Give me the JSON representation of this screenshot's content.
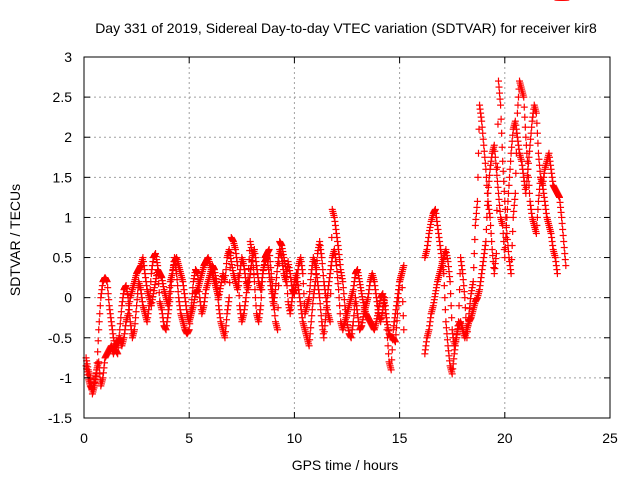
{
  "chart_data": {
    "type": "scatter",
    "title": "Day 331 of 2019, Sidereal Day-to-day VTEC variation (SDTVAR) for receiver kir8",
    "xlabel": "GPS time / hours",
    "ylabel": "SDTVAR / TECUs",
    "xlim": [
      0,
      25
    ],
    "ylim": [
      -1.5,
      3
    ],
    "xticks": [
      0,
      5,
      10,
      15,
      20,
      25
    ],
    "xtick_labels": [
      "0",
      "5",
      "10",
      "15",
      "20",
      "25"
    ],
    "yticks": [
      -1.5,
      -1,
      -0.5,
      0,
      0.5,
      1,
      1.5,
      2,
      2.5,
      3
    ],
    "ytick_labels": [
      "-1.5",
      "-1",
      "-0.5",
      "0",
      "0.5",
      "1",
      "1.5",
      "2",
      "2.5",
      "3"
    ],
    "grid": true,
    "marker": "plus",
    "color": "#ff0000",
    "series": [
      {
        "name": "SDTVAR",
        "x": [
          0.1,
          0.2,
          0.3,
          0.4,
          0.5,
          0.6,
          0.7,
          0.8,
          0.9,
          1.0,
          1.1,
          1.2,
          1.3,
          1.4,
          1.5,
          1.6,
          1.7,
          1.8,
          1.9,
          2.0,
          2.1,
          2.2,
          2.3,
          2.4,
          2.5,
          2.6,
          2.7,
          2.8,
          2.9,
          3.0,
          3.1,
          3.2,
          3.3,
          3.4,
          3.5,
          3.6,
          3.7,
          3.8,
          3.9,
          4.0,
          4.1,
          4.2,
          4.3,
          4.4,
          4.5,
          4.6,
          4.7,
          4.8,
          4.9,
          5.0,
          5.1,
          5.2,
          5.3,
          5.4,
          5.5,
          5.6,
          5.7,
          5.8,
          5.9,
          6.0,
          6.1,
          6.2,
          6.3,
          6.4,
          6.5,
          6.6,
          6.7,
          6.8,
          6.9,
          7.0,
          7.1,
          7.2,
          7.3,
          7.4,
          7.5,
          7.6,
          7.7,
          7.8,
          7.9,
          8.0,
          8.1,
          8.2,
          8.3,
          8.4,
          8.5,
          8.6,
          8.7,
          8.8,
          8.9,
          9.0,
          9.1,
          9.2,
          9.3,
          9.4,
          9.5,
          9.6,
          9.7,
          9.8,
          9.9,
          10.0,
          10.1,
          10.2,
          10.3,
          10.4,
          10.5,
          10.6,
          10.7,
          10.8,
          10.9,
          11.0,
          11.1,
          11.2,
          11.3,
          11.4,
          11.5,
          11.6,
          11.7,
          11.8,
          11.9,
          12.0,
          12.1,
          12.2,
          12.3,
          12.4,
          12.5,
          12.6,
          12.7,
          12.8,
          12.9,
          13.0,
          13.1,
          13.2,
          13.3,
          13.4,
          13.5,
          13.6,
          13.7,
          13.8,
          13.9,
          14.0,
          14.1,
          14.2,
          14.3,
          14.4,
          14.5,
          14.6,
          14.7,
          14.8,
          14.9,
          15.0,
          15.1,
          15.2,
          16.2,
          16.3,
          16.4,
          16.5,
          16.6,
          16.7,
          16.8,
          16.9,
          17.0,
          17.1,
          17.2,
          17.3,
          17.4,
          17.5,
          17.6,
          17.7,
          17.8,
          17.9,
          18.0,
          18.1,
          18.2,
          18.3,
          18.4,
          18.5,
          18.6,
          18.7,
          18.8,
          18.9,
          19.0,
          19.1,
          19.2,
          19.3,
          19.4,
          19.5,
          19.6,
          19.7,
          19.8,
          19.9,
          20.0,
          20.1,
          20.2,
          20.3,
          20.4,
          20.5,
          20.6,
          20.7,
          20.8,
          20.9,
          21.0,
          21.1,
          21.2,
          21.3,
          21.4,
          21.5,
          21.6,
          21.7,
          21.8,
          21.9,
          22.0,
          22.1,
          22.2,
          22.3,
          22.4,
          22.5,
          22.6,
          22.7,
          22.8,
          22.9
        ],
        "y": [
          -0.85,
          -1.0,
          -1.1,
          -1.15,
          -1.05,
          -0.9,
          -0.8,
          -1.1,
          -1.0,
          -0.75,
          -0.7,
          -0.65,
          -0.6,
          -0.7,
          -0.6,
          -0.55,
          -0.5,
          -0.6,
          -0.5,
          -0.3,
          -0.2,
          0.0,
          0.1,
          0.2,
          0.3,
          0.35,
          0.4,
          0.5,
          0.3,
          0.1,
          0.0,
          -0.1,
          0.05,
          0.2,
          0.35,
          0.3,
          0.25,
          0.1,
          0.0,
          -0.1,
          0.2,
          0.3,
          0.45,
          0.5,
          0.4,
          0.3,
          0.2,
          0.0,
          -0.2,
          -0.3,
          -0.2,
          -0.1,
          0.05,
          0.1,
          0.2,
          0.3,
          0.4,
          0.45,
          0.5,
          0.4,
          0.3,
          0.2,
          0.1,
          0.0,
          0.15,
          0.3,
          0.2,
          0.5,
          0.6,
          0.45,
          0.3,
          0.2,
          0.1,
          0.3,
          0.5,
          0.4,
          0.2,
          0.1,
          0.3,
          0.5,
          0.6,
          0.4,
          0.2,
          0.1,
          0.3,
          0.45,
          0.5,
          0.3,
          0.1,
          -0.1,
          0.1,
          0.4,
          0.6,
          0.5,
          0.3,
          0.2,
          0.45,
          0.3,
          0.1,
          0.05,
          0.2,
          0.4,
          0.5,
          0.3,
          -0.2,
          -0.1,
          0.0,
          0.3,
          0.5,
          0.4,
          0.2,
          0.0,
          -0.3,
          -0.5,
          -0.2,
          0.1,
          0.3,
          0.5,
          0.6,
          0.4,
          0.1,
          -0.3,
          -0.4,
          -0.3,
          -0.2,
          -0.1,
          0.0,
          0.1,
          0.3,
          0.35,
          0.2,
          0.05,
          -0.1,
          -0.2,
          -0.25,
          -0.3,
          -0.35,
          -0.4,
          -0.3,
          -0.15,
          0.0,
          0.05,
          -0.1,
          -0.3,
          -0.45,
          -0.5,
          -0.5,
          -0.55,
          -0.2,
          0.2,
          0.3,
          -0.4,
          -0.7,
          -0.5,
          -0.4,
          -0.2,
          -0.1,
          0.05,
          0.2,
          0.3,
          0.4,
          0.5,
          0.6,
          0.45,
          0.2,
          -0.4,
          -0.6,
          -0.5,
          -0.35,
          -0.3,
          -0.4,
          -0.5,
          -0.4,
          -0.3,
          -0.25,
          -0.15,
          -0.05,
          0.0,
          0.1,
          0.3,
          0.5,
          0.7,
          1.3,
          1.6,
          1.8,
          1.9,
          1.6,
          1.3,
          1.0,
          0.9,
          0.5,
          1.0,
          1.4,
          1.8,
          2.1,
          2.2,
          2.0,
          1.8,
          1.7,
          1.5,
          1.3,
          1.6,
          1.9,
          2.2,
          2.4,
          2.3,
          1.8,
          1.5,
          1.4,
          1.6,
          1.7,
          1.8,
          1.6,
          1.4,
          1.35,
          1.3,
          1.25,
          1.0,
          0.7,
          0.4
        ],
        "y2": [
          -0.75,
          -0.9,
          -1.0,
          -1.2,
          -1.1,
          -0.95,
          -0.4,
          0.0,
          0.2,
          0.25,
          0.2,
          -0.1,
          -0.3,
          -0.5,
          -0.65,
          -0.7,
          -0.4,
          -0.1,
          0.1,
          0.15,
          0.0,
          -0.3,
          -0.5,
          -0.4,
          -0.1,
          0.2,
          0.1,
          -0.1,
          -0.2,
          -0.3,
          -0.1,
          0.3,
          0.5,
          0.55,
          0.4,
          -0.05,
          -0.15,
          -0.35,
          -0.4,
          -0.2,
          0.0,
          0.3,
          0.5,
          0.3,
          0.0,
          -0.2,
          -0.3,
          -0.4,
          -0.45,
          -0.4,
          -0.1,
          0.2,
          0.35,
          0.3,
          0.0,
          -0.2,
          -0.1,
          0.1,
          0.2,
          0.3,
          0.4,
          0.35,
          0.2,
          -0.1,
          -0.3,
          -0.4,
          -0.5,
          -0.2,
          0.0,
          0.75,
          0.7,
          0.6,
          0.4,
          -0.1,
          -0.3,
          -0.2,
          0.0,
          0.25,
          0.7,
          0.55,
          0.2,
          -0.2,
          -0.3,
          -0.1,
          0.3,
          0.5,
          0.55,
          0.6,
          0.3,
          0.0,
          -0.3,
          -0.4,
          0.7,
          0.65,
          0.5,
          0.35,
          -0.05,
          -0.2,
          0.0,
          0.2,
          0.3,
          0.1,
          -0.1,
          -0.3,
          -0.4,
          -0.5,
          -0.6,
          -0.3,
          0.0,
          0.2,
          0.55,
          0.7,
          0.5,
          0.2,
          0.0,
          -0.2,
          -0.3,
          1.1,
          1.0,
          0.8,
          0.6,
          0.35,
          0.2,
          -0.1,
          -0.3,
          -0.45,
          -0.5,
          -0.3,
          0.0,
          -0.2,
          -0.4,
          -0.35,
          -0.2,
          -0.1,
          0.0,
          0.2,
          0.3,
          0.2,
          0.0,
          -0.2,
          -0.3,
          -0.15,
          0.0,
          -0.4,
          -0.8,
          -0.9,
          -0.4,
          -0.2,
          0.0,
          0.2,
          0.3,
          0.4,
          0.5,
          0.6,
          0.8,
          0.95,
          1.05,
          1.1,
          0.9,
          0.7,
          0.5,
          0.3,
          -0.3,
          -0.6,
          -0.85,
          -0.95,
          -0.7,
          -0.5,
          -0.3,
          0.5,
          0.3,
          0.0,
          -0.5,
          -0.2,
          0.05,
          0.2,
          0.9,
          1.2,
          2.4,
          2.2,
          1.9,
          1.6,
          1.2,
          1.0,
          0.6,
          0.3,
          0.55,
          2.7,
          2.4,
          1.7,
          1.2,
          0.8,
          0.5,
          0.3,
          1.0,
          1.3,
          2.3,
          2.7,
          2.6,
          2.5,
          2.0,
          1.6,
          1.2,
          1.0,
          0.9,
          0.8,
          1.2,
          1.5,
          1.4,
          1.2,
          1.0,
          0.9,
          0.8,
          0.6,
          0.5,
          0.3
        ]
      }
    ]
  }
}
